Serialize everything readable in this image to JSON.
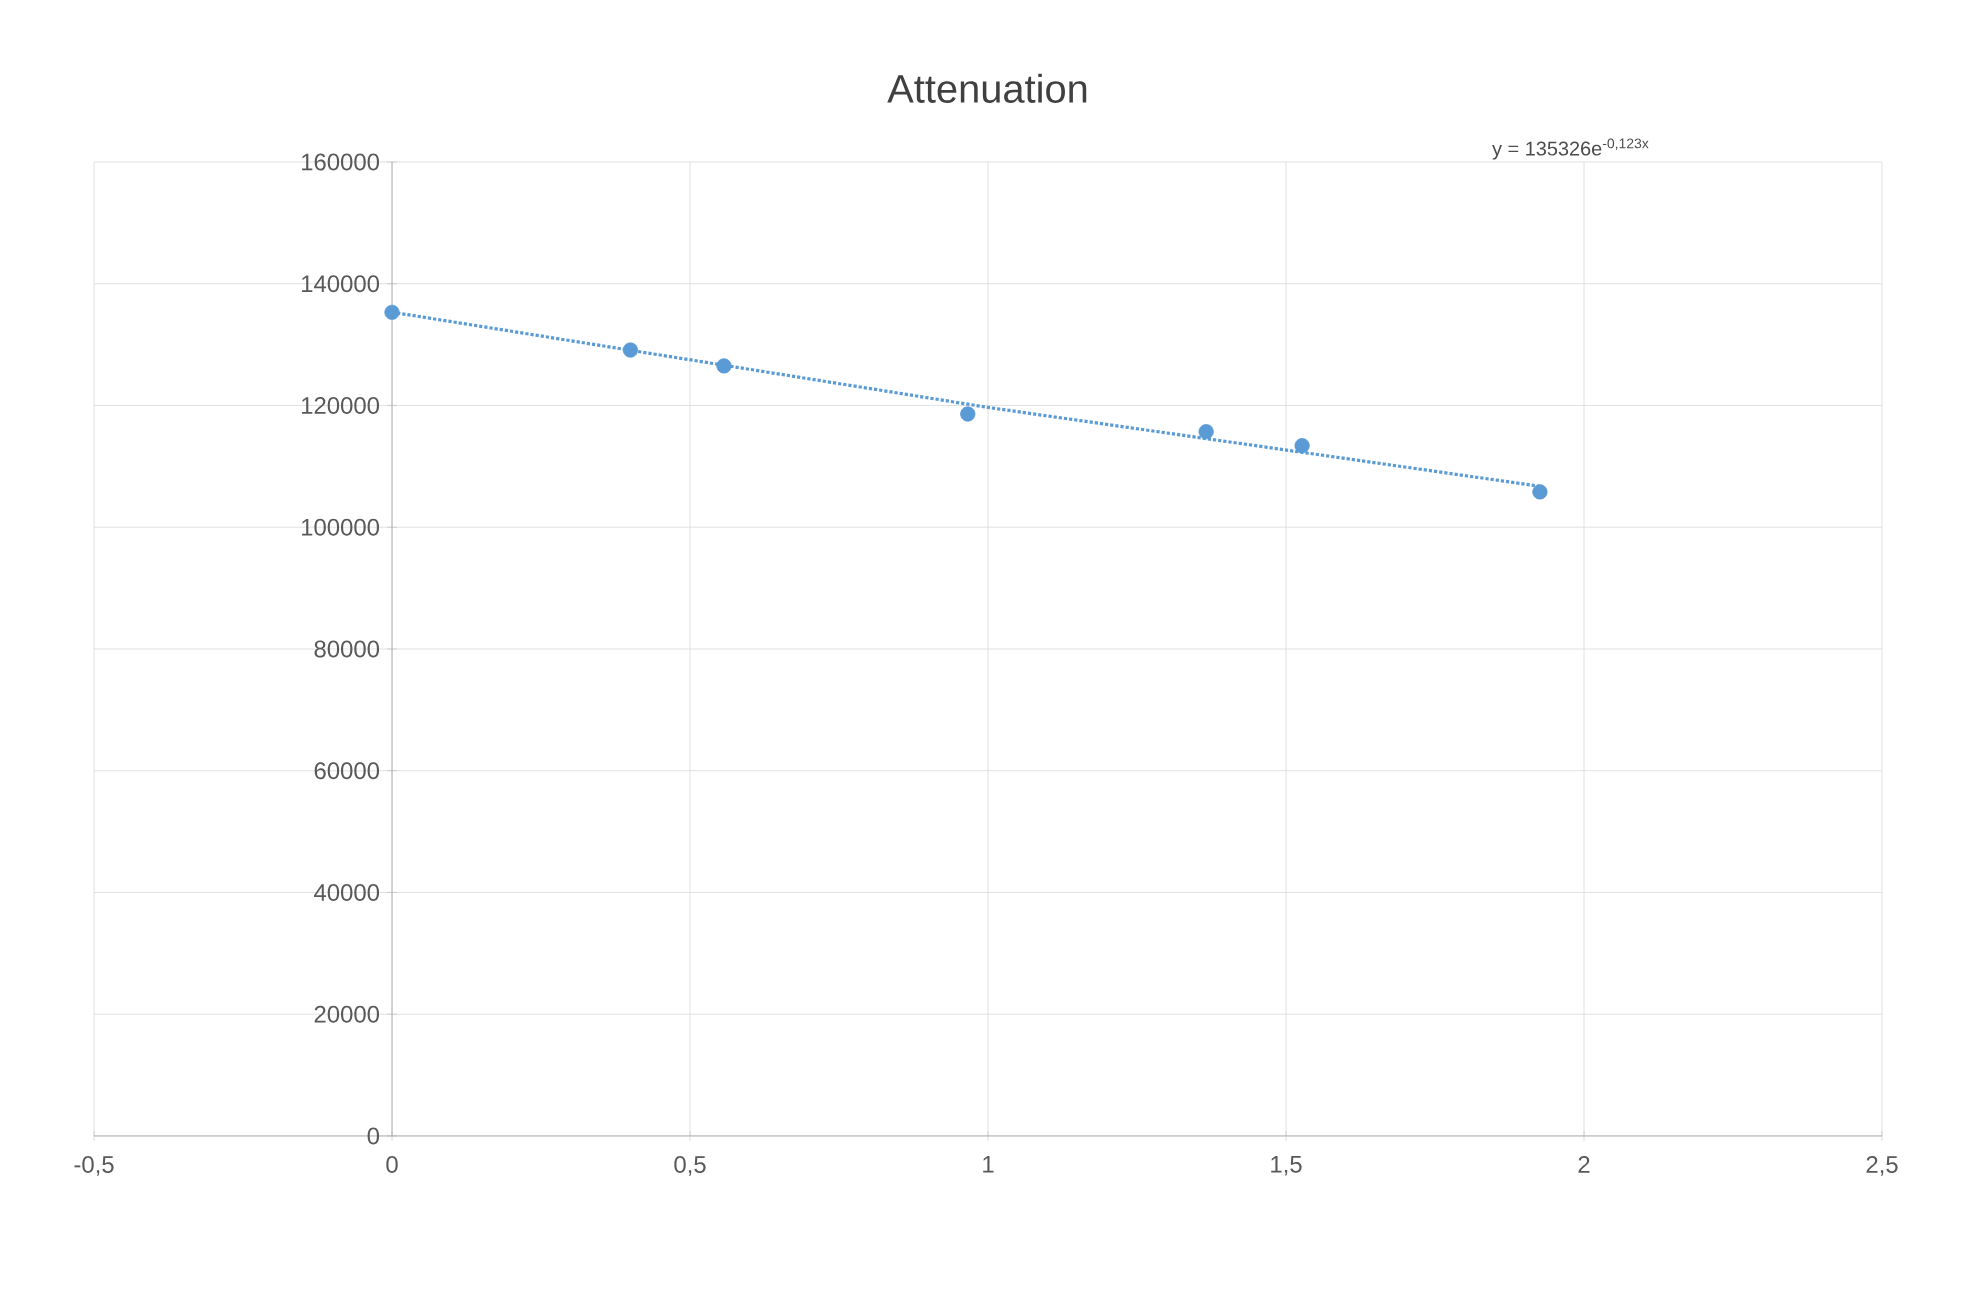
{
  "chart_data": {
    "type": "scatter",
    "title": "Attenuation",
    "annotations": [
      "y = 135326e$^{-0,123x}$"
    ],
    "series": [
      {
        "color": "#5b9bd5",
        "x": [
          0,
          0.4,
          0.557,
          0.966,
          1.366,
          1.527,
          1.926
        ],
        "values": [
          135300,
          129100,
          126500,
          118600,
          115700,
          113400,
          105800
        ],
        "marker": "circle"
      },
      {
        "type": "line",
        "color": "#5b9bd5",
        "x": [
          0,
          1,
          1.926
        ],
        "values": [
          135326,
          119680,
          106720
        ],
        "marker": "none",
        "line_style": "dotted"
      }
    ],
    "xlim": [
      -0.5,
      2.5
    ],
    "ylim": [
      0,
      160000
    ],
    "xticks": [
      {
        "value": -0.5,
        "label": "-0,5"
      },
      0,
      {
        "value": 0.5,
        "label": "0,5"
      },
      1,
      {
        "value": 1.5,
        "label": "1,5"
      },
      2,
      {
        "value": 2.5,
        "label": "2,5"
      }
    ],
    "yticks": [
      0,
      20000,
      40000,
      60000,
      80000,
      100000,
      120000,
      140000,
      160000
    ],
    "grid": true
  }
}
